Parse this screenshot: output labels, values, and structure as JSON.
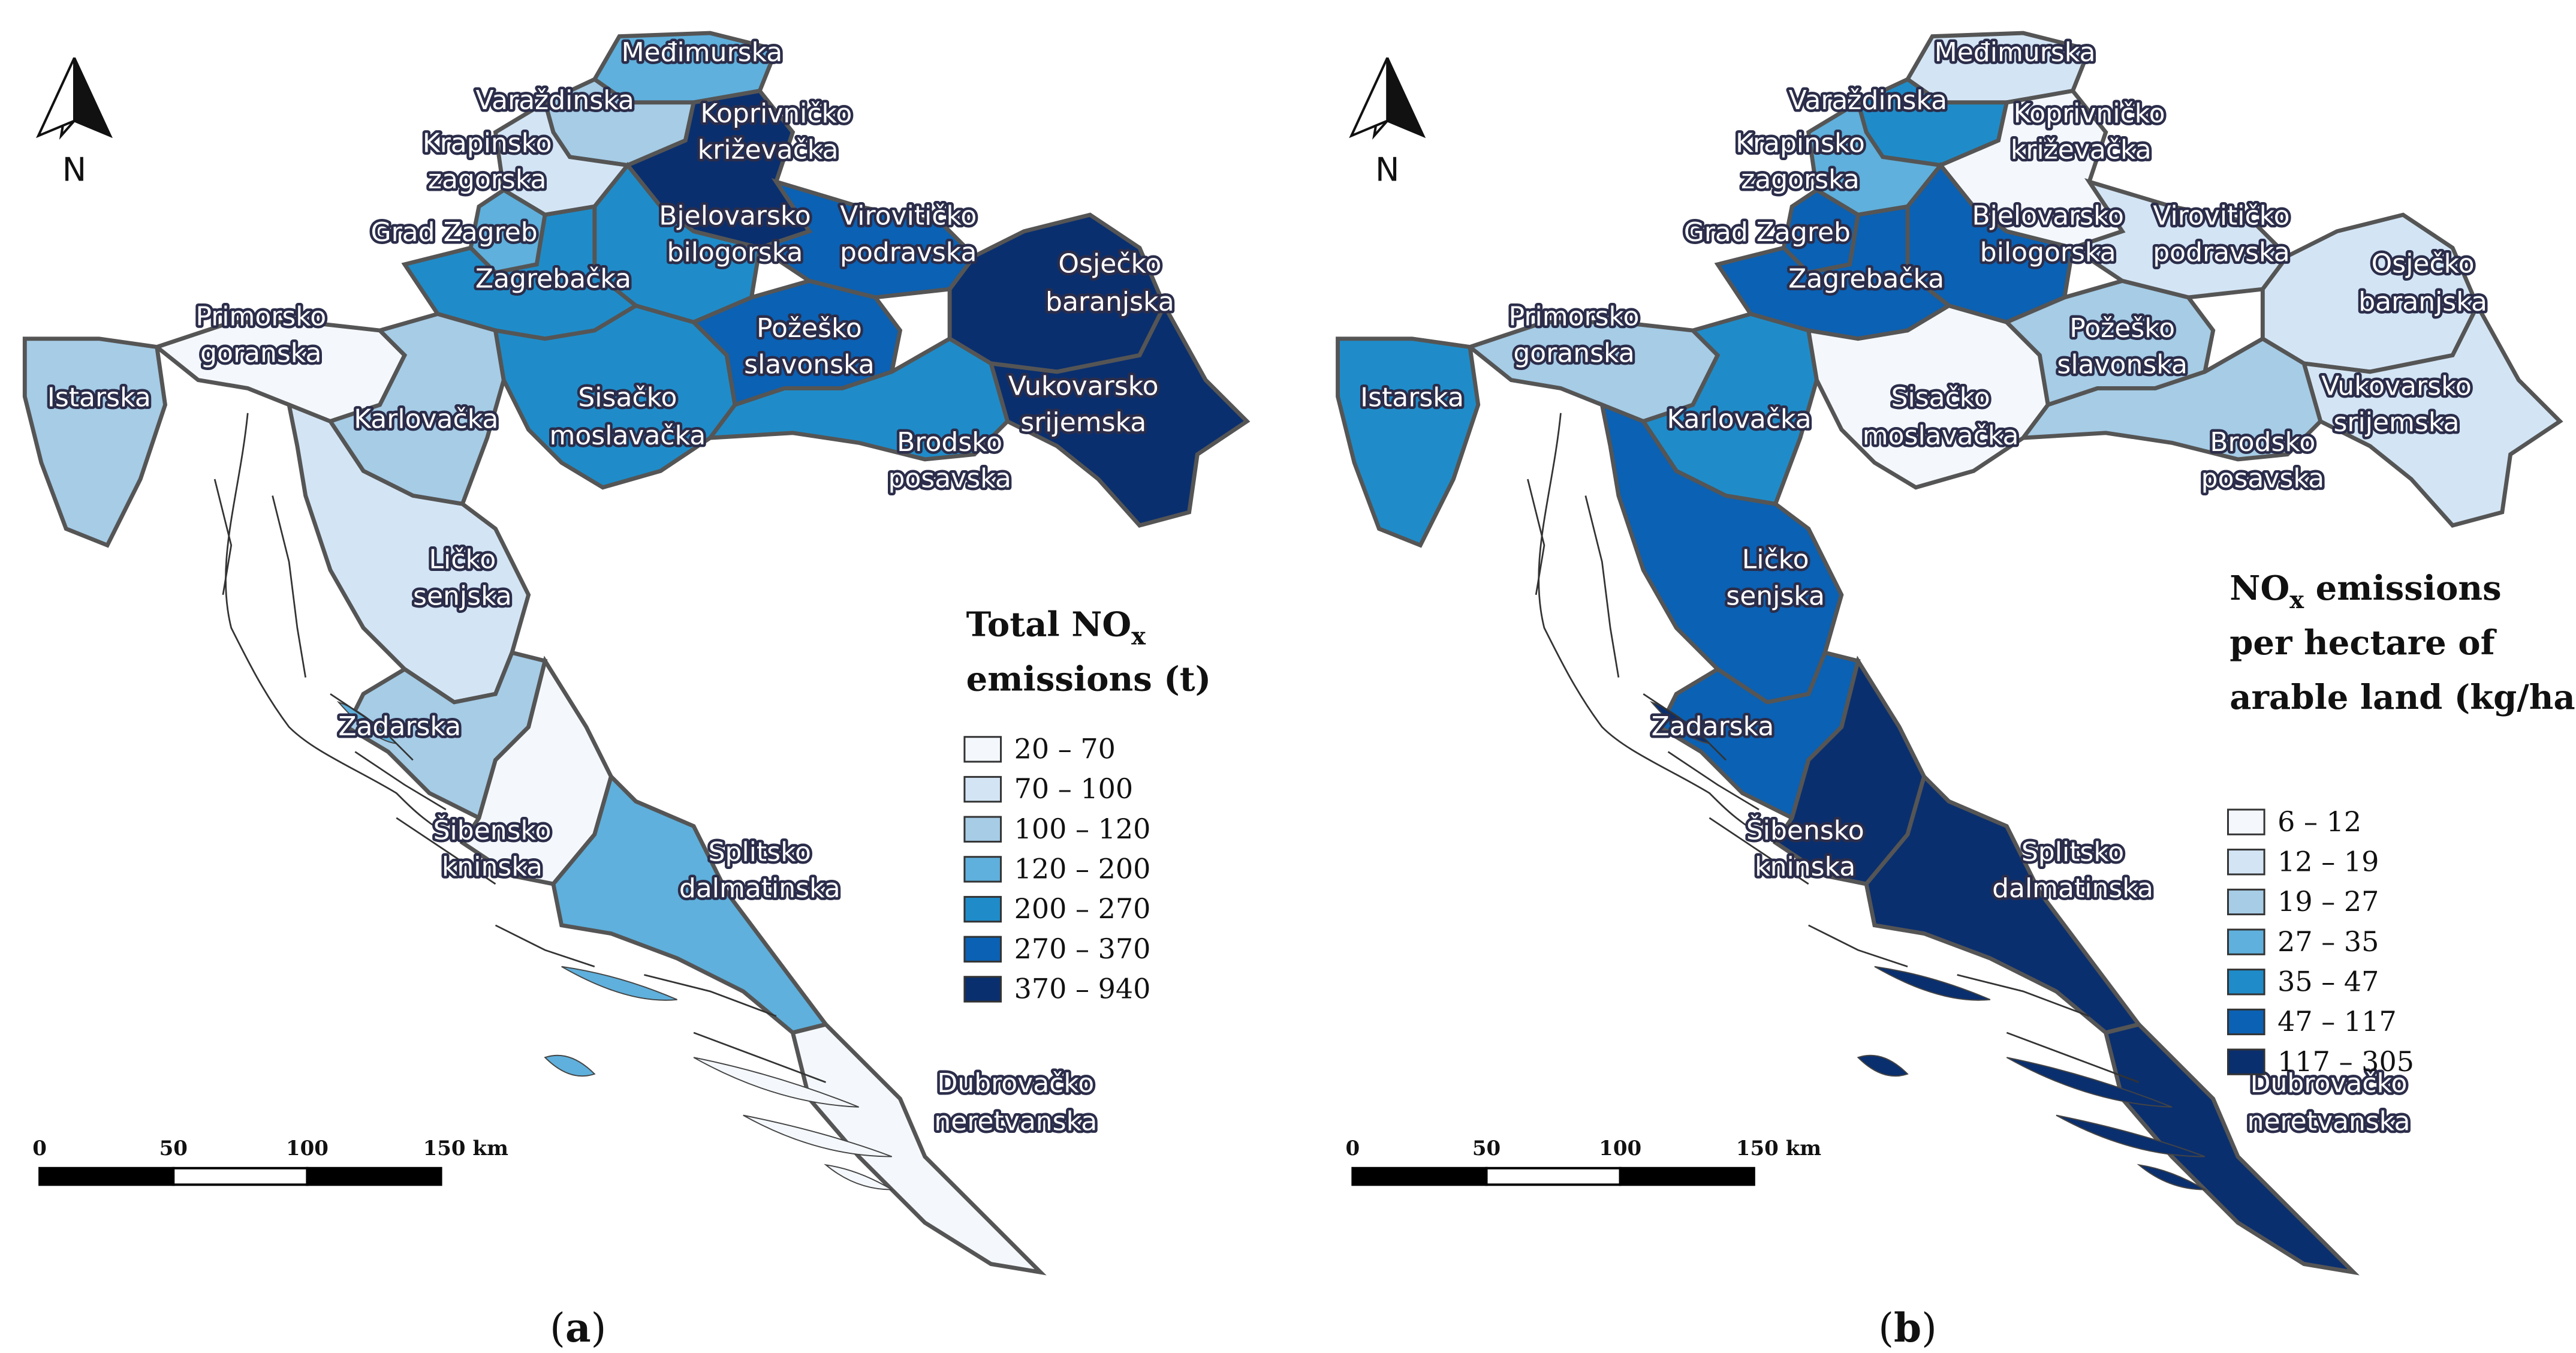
{
  "maps": [
    {
      "id": "a",
      "caption_open": "(",
      "caption_letter": "a",
      "caption_close": ")",
      "legend_title_line1": "Total NO",
      "legend_title_sub": "x",
      "legend_title_line2": "emissions (t)",
      "legend_title_line3": "",
      "legend": [
        {
          "label": "20 – 70",
          "color": "#f4f8fd"
        },
        {
          "label": "70 – 100",
          "color": "#d3e5f5"
        },
        {
          "label": "100 – 120",
          "color": "#a6cce6"
        },
        {
          "label": "120 – 200",
          "color": "#5fb0dc"
        },
        {
          "label": "200 – 270",
          "color": "#1f8cc9"
        },
        {
          "label": "270 – 370",
          "color": "#0b61b3"
        },
        {
          "label": "370 – 940",
          "color": "#0a2f6e"
        }
      ],
      "regions": [
        {
          "name": "Međimurska",
          "cls": 3
        },
        {
          "name": "Varaždinska",
          "cls": 2
        },
        {
          "name": "Koprivničko križevačka",
          "cls": 6
        },
        {
          "name": "Krapinsko zagorska",
          "cls": 1
        },
        {
          "name": "Grad Zagreb",
          "cls": 3
        },
        {
          "name": "Bjelovarsko bilogorska",
          "cls": 4
        },
        {
          "name": "Virovitičko podravska",
          "cls": 5
        },
        {
          "name": "Osječko baranjska",
          "cls": 6
        },
        {
          "name": "Zagrebačka",
          "cls": 4
        },
        {
          "name": "Primorsko goranska",
          "cls": 0
        },
        {
          "name": "Istarska",
          "cls": 2
        },
        {
          "name": "Karlovačka",
          "cls": 2
        },
        {
          "name": "Sisačko moslavačka",
          "cls": 4
        },
        {
          "name": "Požeško slavonska",
          "cls": 5
        },
        {
          "name": "Vukovarsko srijemska",
          "cls": 6
        },
        {
          "name": "Brodsko posavska",
          "cls": 4
        },
        {
          "name": "Ličko senjska",
          "cls": 1
        },
        {
          "name": "Zadarska",
          "cls": 2
        },
        {
          "name": "Šibensko kninska",
          "cls": 0
        },
        {
          "name": "Splitsko dalmatinska",
          "cls": 3
        },
        {
          "name": "Dubrovačko neretvanska",
          "cls": 0
        }
      ]
    },
    {
      "id": "b",
      "caption_open": "(",
      "caption_letter": "b",
      "caption_close": ")",
      "legend_title_line1": "NO",
      "legend_title_sub": "x",
      "legend_title_line2": "emissions",
      "legend_title_line3": "per hectare of",
      "legend_title_line4": "arable land (kg/ha)",
      "legend": [
        {
          "label": "6 – 12",
          "color": "#f4f8fd"
        },
        {
          "label": "12 – 19",
          "color": "#d3e5f5"
        },
        {
          "label": "19 – 27",
          "color": "#a6cce6"
        },
        {
          "label": "27 – 35",
          "color": "#5fb0dc"
        },
        {
          "label": "35 – 47",
          "color": "#1f8cc9"
        },
        {
          "label": "47 – 117",
          "color": "#0b61b3"
        },
        {
          "label": "117 – 305",
          "color": "#0a2f6e"
        }
      ],
      "regions": [
        {
          "name": "Međimurska",
          "cls": 1
        },
        {
          "name": "Varaždinska",
          "cls": 4
        },
        {
          "name": "Koprivničko križevačka",
          "cls": 0
        },
        {
          "name": "Krapinsko zagorska",
          "cls": 3
        },
        {
          "name": "Grad Zagreb",
          "cls": 5
        },
        {
          "name": "Bjelovarsko bilogorska",
          "cls": 5
        },
        {
          "name": "Virovitičko podravska",
          "cls": 1
        },
        {
          "name": "Osječko baranjska",
          "cls": 1
        },
        {
          "name": "Zagrebačka",
          "cls": 5
        },
        {
          "name": "Primorsko goranska",
          "cls": 2
        },
        {
          "name": "Istarska",
          "cls": 4
        },
        {
          "name": "Karlovačka",
          "cls": 4
        },
        {
          "name": "Sisačko moslavačka",
          "cls": 0
        },
        {
          "name": "Požeško slavonska",
          "cls": 2
        },
        {
          "name": "Vukovarsko srijemska",
          "cls": 1
        },
        {
          "name": "Brodsko posavska",
          "cls": 2
        },
        {
          "name": "Ličko senjska",
          "cls": 5
        },
        {
          "name": "Zadarska",
          "cls": 5
        },
        {
          "name": "Šibensko kninska",
          "cls": 6
        },
        {
          "name": "Splitsko dalmatinska",
          "cls": 6
        },
        {
          "name": "Dubrovačko neretvanska",
          "cls": 6
        }
      ]
    }
  ],
  "north_label": "N",
  "scale_labels": [
    "0",
    "50",
    "100",
    "150 km"
  ]
}
